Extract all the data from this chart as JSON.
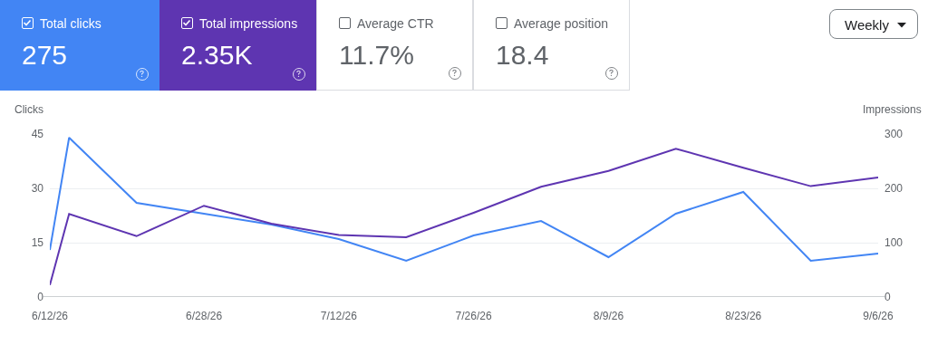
{
  "chart_data": {
    "type": "line",
    "ylabel": "Clicks",
    "y2label": "Impressions",
    "x": [
      "2026-06-12",
      "2026-06-14",
      "2026-06-21",
      "2026-06-28",
      "2026-07-05",
      "2026-07-12",
      "2026-07-19",
      "2026-07-26",
      "2026-08-02",
      "2026-08-09",
      "2026-08-16",
      "2026-08-23",
      "2026-08-30",
      "2026-09-06"
    ],
    "series": [
      {
        "color": "#4285f4",
        "values": [
          13,
          44,
          26,
          23,
          20,
          16,
          10,
          17,
          21,
          11,
          23,
          29,
          10,
          12
        ]
      },
      {
        "color": "#5e35b1",
        "axis": "y2",
        "values": [
          22,
          153,
          112,
          168,
          135,
          114,
          110,
          155,
          203,
          232,
          273,
          238,
          204,
          220
        ]
      }
    ],
    "xlim": [
      "2026-06-12",
      "2026-09-06"
    ],
    "xticks": [
      {
        "value": "2026-06-12",
        "label": "6/12/26"
      },
      {
        "value": "2026-06-28",
        "label": "6/28/26"
      },
      {
        "value": "2026-07-12",
        "label": "7/12/26"
      },
      {
        "value": "2026-07-26",
        "label": "7/26/26"
      },
      {
        "value": "2026-08-09",
        "label": "8/9/26"
      },
      {
        "value": "2026-08-23",
        "label": "8/23/26"
      },
      {
        "value": "2026-09-06",
        "label": "9/6/26"
      }
    ],
    "ylim": [
      0,
      45
    ],
    "yticks": [
      0,
      15,
      30,
      45
    ],
    "y2lim": [
      0,
      300
    ],
    "y2ticks": [
      0,
      100,
      200,
      300
    ],
    "grid": "y",
    "marker": "none",
    "line_style": "solid",
    "annotations": [
      "Total clicks",
      "275",
      "Total impressions",
      "2.35K",
      "Average CTR",
      "11.7%",
      "Average position",
      "18.4",
      "Weekly"
    ]
  }
}
